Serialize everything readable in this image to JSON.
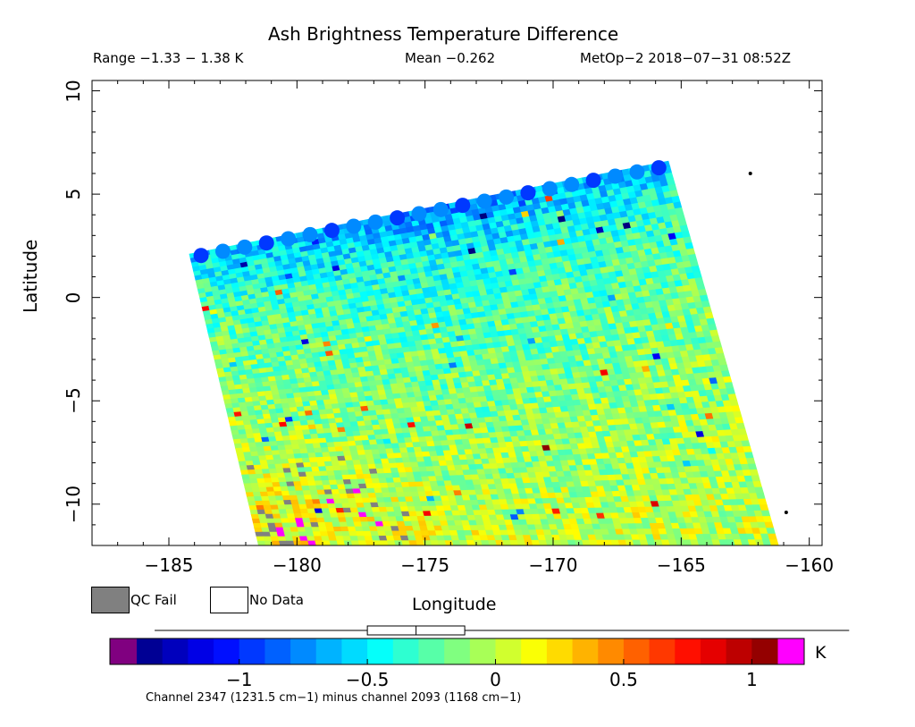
{
  "chart_data": {
    "type": "heatmap",
    "title": "Ash Brightness Temperature Difference",
    "range_text": "Range −1.33 − 1.38 K",
    "mean_text": "Mean −0.262",
    "satellite_time": "MetOp−2 2018−07−31 08:52Z",
    "xlabel": "Longitude",
    "ylabel": "Latitude",
    "xlim": [
      -188,
      -159.5
    ],
    "ylim": [
      -12,
      10.5
    ],
    "x_ticks": [
      -185,
      -180,
      -175,
      -170,
      -165,
      -160
    ],
    "x_tick_labels": [
      "−185",
      "−180",
      "−175",
      "−170",
      "−165",
      "−160"
    ],
    "y_ticks": [
      10,
      5,
      0,
      -5,
      -10
    ],
    "y_tick_labels": [
      "10",
      "5",
      "0",
      "−5",
      "−10"
    ],
    "swath_corners": {
      "top_left": [
        -184.2,
        2.1
      ],
      "top_right": [
        -165.5,
        6.6
      ],
      "bottom_right": [
        -161.2,
        -12
      ],
      "bottom_left": [
        -181.5,
        -12
      ]
    },
    "value_range": [
      -1.33,
      1.38
    ],
    "mean": -0.262,
    "colorbar": {
      "vmin": -1.4,
      "vmax": 1.1,
      "tick_values": [
        -1,
        -0.5,
        0,
        0.5,
        1
      ],
      "tick_labels": [
        "−1",
        "−0.5",
        "0",
        "0.5",
        "1"
      ],
      "unit": "K",
      "under_color": "#800080",
      "over_color": "#ff00ff",
      "boxplot": {
        "whisker_low": -1.33,
        "q1": -0.5,
        "median": -0.31,
        "q3": -0.12,
        "whisker_high": 1.38
      }
    },
    "legend": [
      {
        "label": "QC Fail",
        "color": "#808080"
      },
      {
        "label": "No Data",
        "color": "#ffffff"
      }
    ],
    "footnote": "Channel 2347 (1231.5 cm−1) minus channel 2093 (1168 cm−1)"
  }
}
